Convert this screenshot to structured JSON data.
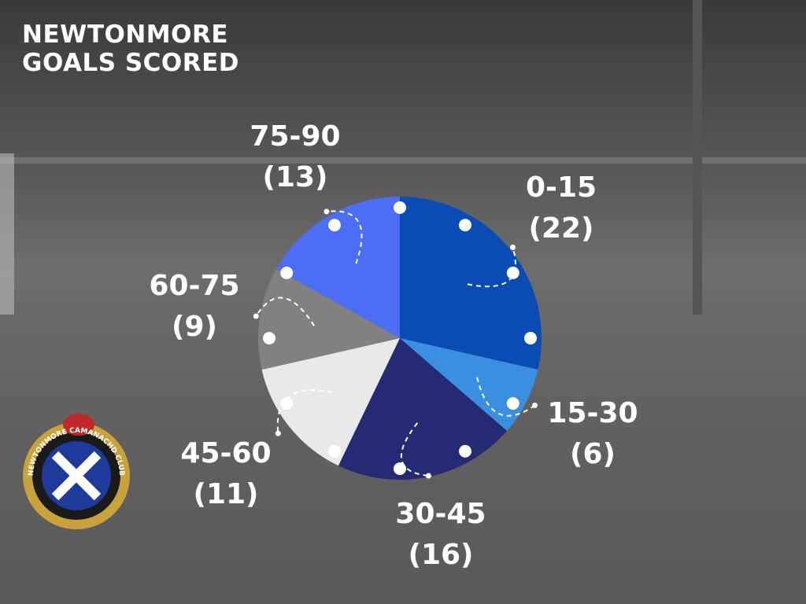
{
  "chart_data": {
    "type": "pie",
    "title": "NEWTONMORE GOALS SCORED",
    "categories": [
      "0-15",
      "15-30",
      "30-45",
      "45-60",
      "60-75",
      "75-90"
    ],
    "values": [
      22,
      6,
      16,
      11,
      9,
      13
    ],
    "value_labels": [
      "(22)",
      "(6)",
      "(16)",
      "(11)",
      "(9)",
      "(13)"
    ],
    "colors": [
      "#0b4cb4",
      "#3b8fe0",
      "#252a74",
      "#e9e9e9",
      "#818181",
      "#4b6ef5"
    ]
  },
  "logo_text": "NEWTONMORE CAMANACHD CLUB"
}
